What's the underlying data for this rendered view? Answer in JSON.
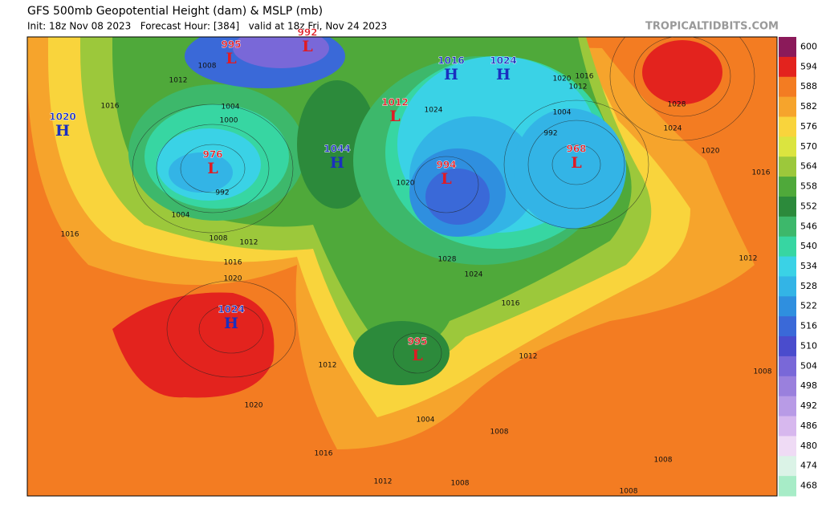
{
  "header": {
    "title": "GFS 500mb Geopotential Height (dam) & MSLP (mb)",
    "subtitle": "Init: 18z Nov 08 2023   Forecast Hour: [384]   valid at 18z Fri, Nov 24 2023",
    "watermark": "TROPICALTIDBITS.COM"
  },
  "colorbar": {
    "labels": [
      "600",
      "594",
      "588",
      "582",
      "576",
      "570",
      "564",
      "558",
      "552",
      "546",
      "540",
      "534",
      "528",
      "522",
      "516",
      "510",
      "504",
      "498",
      "492",
      "486",
      "480",
      "474",
      "468"
    ],
    "colors": [
      "#8b1a5a",
      "#e3231e",
      "#f37c22",
      "#f6a42c",
      "#f9d43c",
      "#dbe43f",
      "#9cc83b",
      "#4fa93a",
      "#2c8a3b",
      "#3db86b",
      "#37d6a2",
      "#3ad2e6",
      "#33b4e6",
      "#2f8fdf",
      "#3a69d8",
      "#4a4ccd",
      "#7968d8",
      "#9a80dd",
      "#b89be6",
      "#d7b8ee",
      "#efdbf5",
      "#dbf3e7",
      "#a7ecc7"
    ]
  },
  "centers": [
    {
      "type": "L",
      "value": "995"
    },
    {
      "type": "L",
      "value": "992"
    },
    {
      "type": "H",
      "value": "1020"
    },
    {
      "type": "L",
      "value": "976"
    },
    {
      "type": "H",
      "value": "1044"
    },
    {
      "type": "L",
      "value": "1012"
    },
    {
      "type": "H",
      "value": "1016"
    },
    {
      "type": "H",
      "value": "1024"
    },
    {
      "type": "L",
      "value": "994"
    },
    {
      "type": "L",
      "value": "968"
    },
    {
      "type": "H",
      "value": "1024"
    },
    {
      "type": "L",
      "value": "995"
    }
  ],
  "isobar_labels": [
    "1012",
    "1016",
    "1008",
    "1004",
    "1000",
    "992",
    "1004",
    "1008",
    "1012",
    "1016",
    "1016",
    "1020",
    "1020",
    "1016",
    "1012",
    "1008",
    "1008",
    "1004",
    "1012",
    "1012",
    "1016",
    "1012",
    "1008",
    "1008",
    "1008",
    "1016",
    "1020",
    "1024",
    "1028",
    "1020",
    "1016",
    "1012",
    "1004",
    "992",
    "1028",
    "1024",
    "1020",
    "1024"
  ]
}
